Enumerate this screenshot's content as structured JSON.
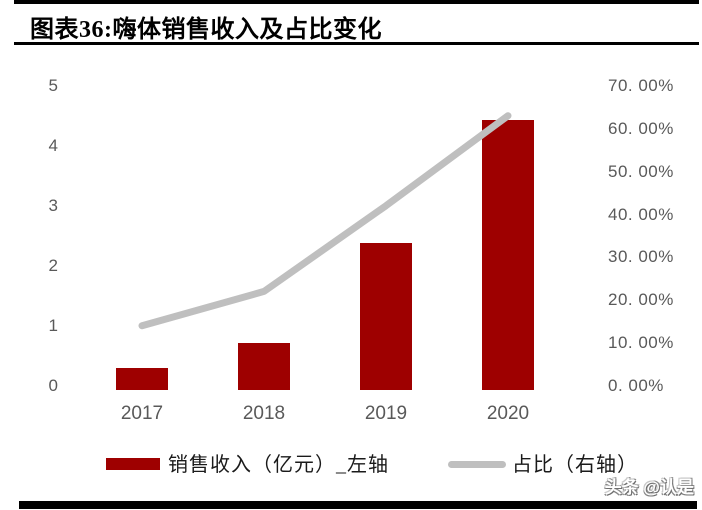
{
  "page": {
    "title": "图表36:嗨体销售收入及占比变化",
    "watermark": "头条 @认是"
  },
  "colors": {
    "bar": "#9E0000",
    "line": "#BFBFBF",
    "axis_text": "#595959",
    "rule": "#000000",
    "background": "#FFFFFF"
  },
  "chart_data": {
    "type": "bar",
    "subtype": "bar+line dual axis",
    "title": "图表36:嗨体销售收入及占比变化",
    "categories": [
      "2017",
      "2018",
      "2019",
      "2020"
    ],
    "series": [
      {
        "name": "销售收入（亿元）_左轴",
        "type": "bar",
        "axis": "left",
        "values": [
          0.36,
          0.78,
          2.45,
          4.5
        ]
      },
      {
        "name": "占比（右轴）",
        "type": "line",
        "axis": "right",
        "unit": "%",
        "values": [
          15,
          23,
          43,
          64
        ]
      }
    ],
    "left_axis": {
      "min": 0,
      "max": 5,
      "ticks": [
        "0",
        "1",
        "2",
        "3",
        "4",
        "5"
      ]
    },
    "right_axis": {
      "min": 0,
      "max": 70,
      "ticks": [
        "0. 00%",
        "10. 00%",
        "20. 00%",
        "30. 00%",
        "40. 00%",
        "50. 00%",
        "60. 00%",
        "70. 00%"
      ]
    },
    "grid": false,
    "legend_position": "bottom"
  }
}
